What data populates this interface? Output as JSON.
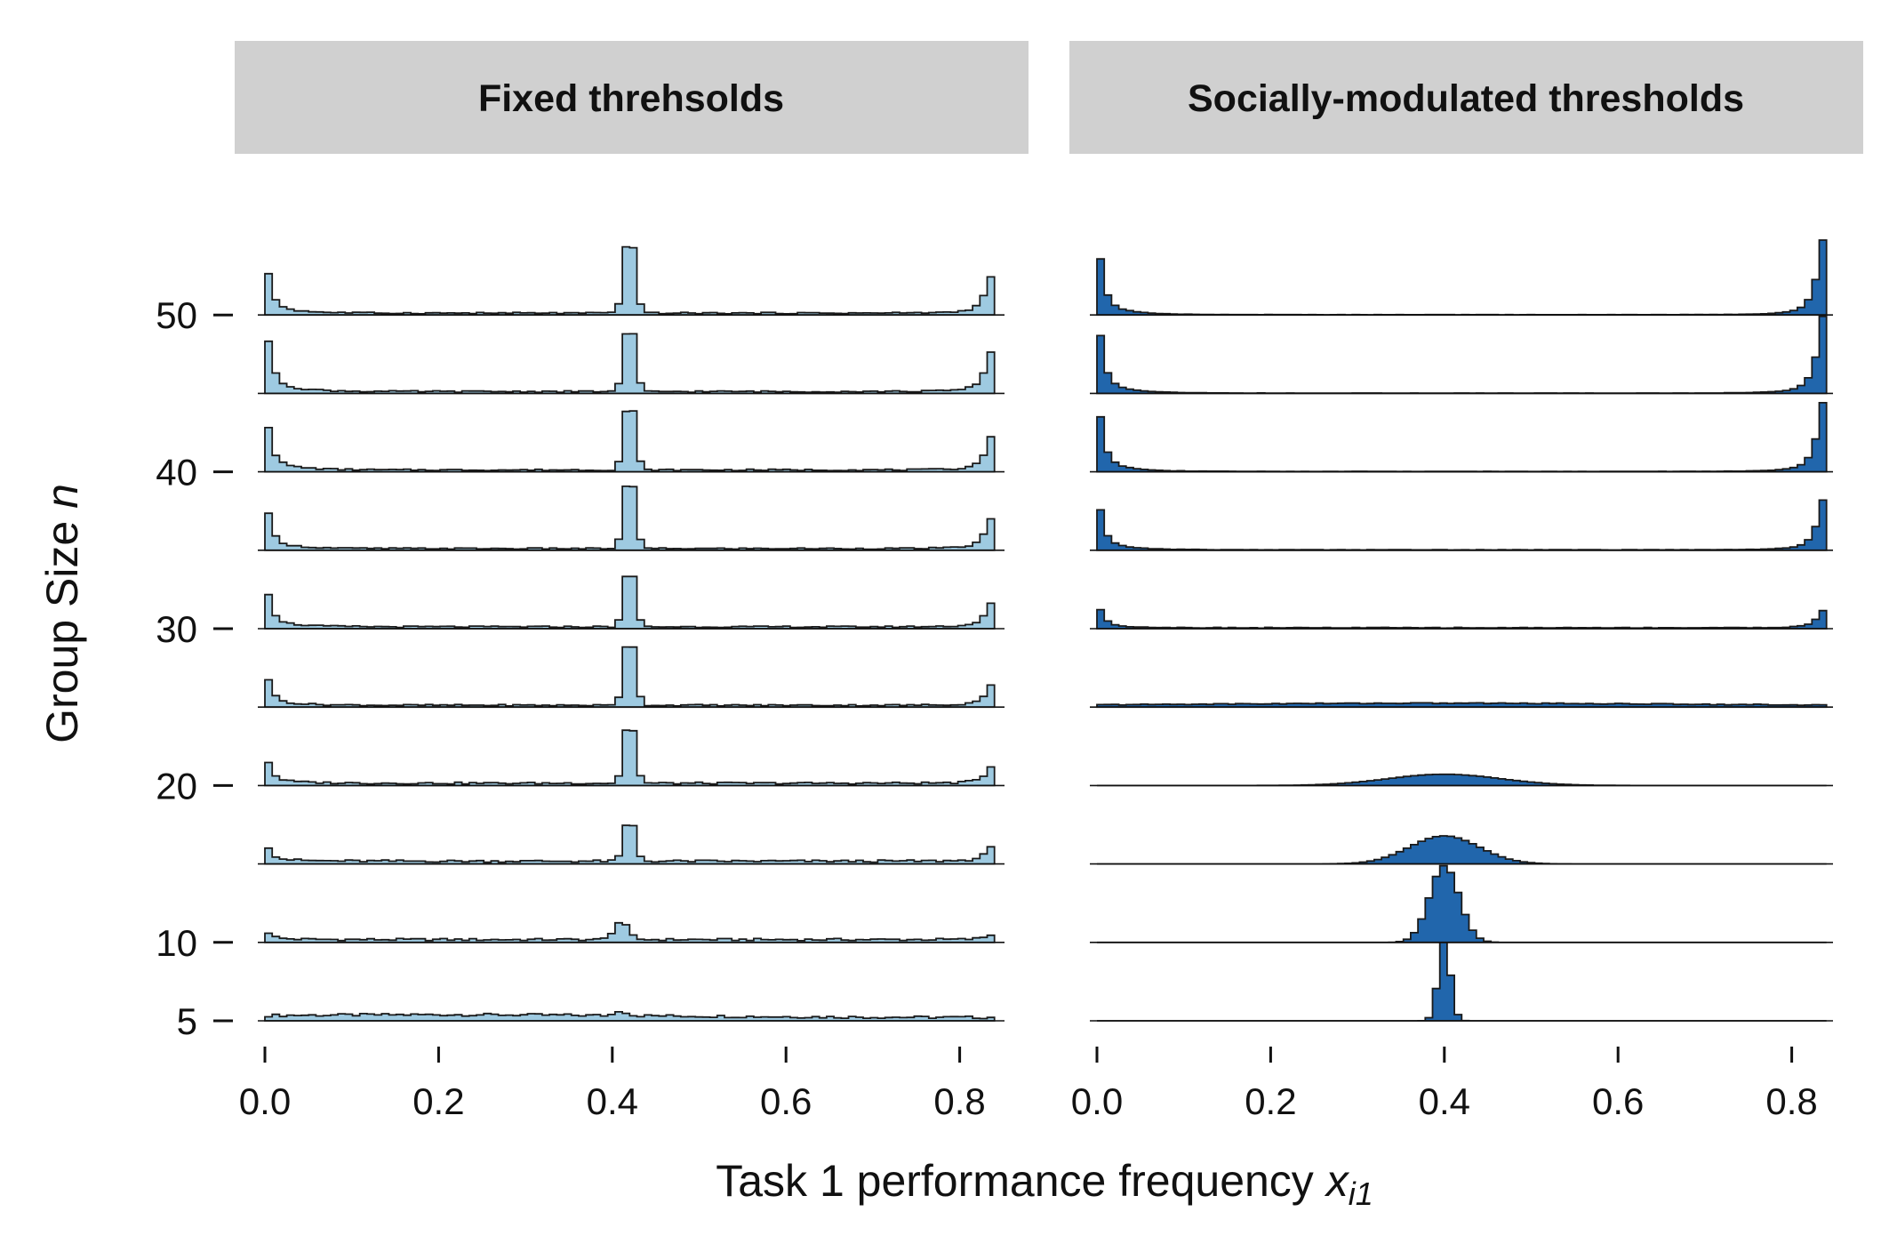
{
  "panels": [
    {
      "title": "Fixed threhsolds",
      "fill": "#9ecae1"
    },
    {
      "title": "Socially-modulated thresholds",
      "fill": "#2166ac"
    }
  ],
  "xlabel": "Task 1 performance frequency ",
  "xlabel_var": "x",
  "xlabel_sub": "i1",
  "ylabel": "Group Size ",
  "ylabel_var": "n",
  "chart_data": {
    "type": "area",
    "subtype": "ridgeline-step-histogram",
    "facets": [
      "Fixed threhsolds",
      "Socially-modulated thresholds"
    ],
    "x_range": [
      0,
      0.84
    ],
    "x_ticks": [
      0.0,
      0.2,
      0.4,
      0.6,
      0.8
    ],
    "x_tick_labels": [
      "0.0",
      "0.2",
      "0.4",
      "0.6",
      "0.8"
    ],
    "y_ticks": [
      5,
      10,
      20,
      30,
      40,
      50
    ],
    "y_tick_labels": [
      "5",
      "10",
      "20",
      "30",
      "40",
      "50"
    ],
    "group_sizes": [
      5,
      10,
      15,
      20,
      25,
      30,
      35,
      40,
      45,
      50
    ],
    "series": [
      {
        "name": "Fixed threhsolds",
        "shape": "peaks at 0.0, 0.41 and 0.82 over a flat background",
        "groups": [
          {
            "n": 5,
            "ridges": [
              [
                0.41,
                0.055,
                0.006
              ],
              [
                0.2,
                0.03,
                0.25
              ]
            ],
            "edge": 0.0,
            "edge_high": 0.0,
            "base": 0.035
          },
          {
            "n": 10,
            "ridges": [
              [
                0.41,
                0.19,
                0.008
              ]
            ],
            "edge": 0.12,
            "edge_high": 0.05,
            "base": 0.03
          },
          {
            "n": 15,
            "ridges": [
              [
                0.42,
                0.48,
                0.006
              ]
            ],
            "edge": 0.24,
            "edge_high": 0.14,
            "base": 0.03
          },
          {
            "n": 20,
            "ridges": [
              [
                0.42,
                0.72,
                0.006
              ]
            ],
            "edge": 0.36,
            "edge_high": 0.17,
            "base": 0.025
          },
          {
            "n": 25,
            "ridges": [
              [
                0.42,
                0.8,
                0.006
              ]
            ],
            "edge": 0.44,
            "edge_high": 0.21,
            "base": 0.02
          },
          {
            "n": 30,
            "ridges": [
              [
                0.42,
                0.68,
                0.006
              ]
            ],
            "edge": 0.56,
            "edge_high": 0.24,
            "base": 0.02
          },
          {
            "n": 35,
            "ridges": [
              [
                0.42,
                0.85,
                0.006
              ]
            ],
            "edge": 0.59,
            "edge_high": 0.31,
            "base": 0.018
          },
          {
            "n": 40,
            "ridges": [
              [
                0.42,
                0.8,
                0.006
              ]
            ],
            "edge": 0.73,
            "edge_high": 0.34,
            "base": 0.02
          },
          {
            "n": 45,
            "ridges": [
              [
                0.42,
                0.78,
                0.006
              ]
            ],
            "edge": 0.86,
            "edge_high": 0.41,
            "base": 0.02
          },
          {
            "n": 50,
            "ridges": [
              [
                0.42,
                0.9,
                0.006
              ]
            ],
            "edge": 0.66,
            "edge_high": 0.38,
            "base": 0.02
          }
        ]
      },
      {
        "name": "Socially-modulated thresholds",
        "shape": "single central peak at small n, splitting to peaks at 0.0 and 0.83 at large n",
        "groups": [
          {
            "n": 5,
            "ridges": [
              [
                0.4,
                0.85,
                0.007
              ]
            ],
            "edge": 0.0,
            "edge_high": 0.0,
            "base": 0.0
          },
          {
            "n": 10,
            "ridges": [
              [
                0.4,
                0.82,
                0.017
              ]
            ],
            "edge": 0.0,
            "edge_high": 0.0,
            "base": 0.0
          },
          {
            "n": 15,
            "ridges": [
              [
                0.4,
                0.3,
                0.04
              ]
            ],
            "edge": 0.0,
            "edge_high": 0.0,
            "base": 0.0
          },
          {
            "n": 20,
            "ridges": [
              [
                0.4,
                0.12,
                0.065
              ]
            ],
            "edge": 0.0,
            "edge_high": 0.0,
            "base": 0.0
          },
          {
            "n": 25,
            "ridges": [
              [
                0.4,
                0.03,
                0.3
              ]
            ],
            "edge": 0.0,
            "edge_high": 0.0,
            "base": 0.012
          },
          {
            "n": 30,
            "ridges": [],
            "edge": 0.31,
            "edge_high": 0.18,
            "base": 0.01
          },
          {
            "n": 35,
            "ridges": [],
            "edge": 0.68,
            "edge_high": 0.52,
            "base": 0.005
          },
          {
            "n": 40,
            "ridges": [],
            "edge": 0.93,
            "edge_high": 0.72,
            "base": 0.004
          },
          {
            "n": 45,
            "ridges": [],
            "edge": 0.98,
            "edge_high": 0.8,
            "base": 0.003
          },
          {
            "n": 50,
            "ridges": [],
            "edge": 0.95,
            "edge_high": 0.78,
            "base": 0.003
          }
        ]
      }
    ]
  }
}
